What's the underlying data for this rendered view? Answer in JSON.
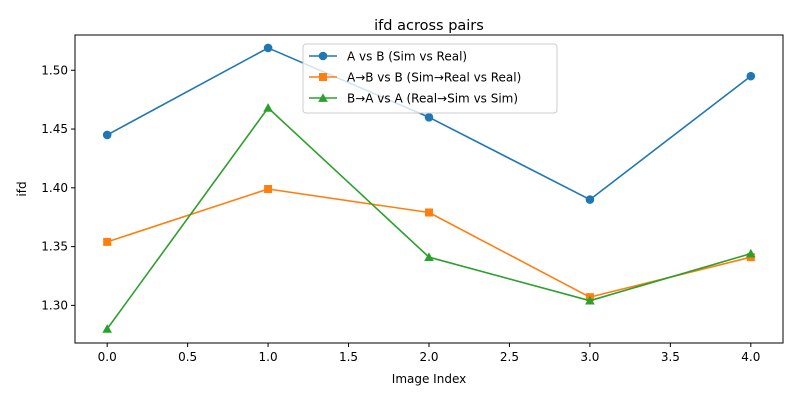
{
  "chart_data": {
    "type": "line",
    "title": "ifd across pairs",
    "xlabel": "Image Index",
    "ylabel": "ifd",
    "x": [
      0,
      1,
      2,
      3,
      4
    ],
    "xlim": [
      -0.2,
      4.2
    ],
    "ylim": [
      1.268,
      1.53
    ],
    "xticks": [
      0.0,
      0.5,
      1.0,
      1.5,
      2.0,
      2.5,
      3.0,
      3.5,
      4.0
    ],
    "xtick_labels": [
      "0.0",
      "0.5",
      "1.0",
      "1.5",
      "2.0",
      "2.5",
      "3.0",
      "3.5",
      "4.0"
    ],
    "yticks": [
      1.3,
      1.35,
      1.4,
      1.45,
      1.5
    ],
    "ytick_labels": [
      "1.30",
      "1.35",
      "1.40",
      "1.45",
      "1.50"
    ],
    "grid": false,
    "legend_position": "top-center",
    "series": [
      {
        "name": "A vs B (Sim vs Real)",
        "values": [
          1.445,
          1.519,
          1.46,
          1.39,
          1.495
        ],
        "color": "#1f77b4",
        "marker": "circle"
      },
      {
        "name": "A→B vs B (Sim→Real vs Real)",
        "values": [
          1.354,
          1.399,
          1.379,
          1.307,
          1.341
        ],
        "color": "#ff7f0e",
        "marker": "square"
      },
      {
        "name": "B→A vs A (Real→Sim vs Sim)",
        "values": [
          1.28,
          1.468,
          1.341,
          1.304,
          1.344
        ],
        "color": "#2ca02c",
        "marker": "triangle"
      }
    ]
  }
}
